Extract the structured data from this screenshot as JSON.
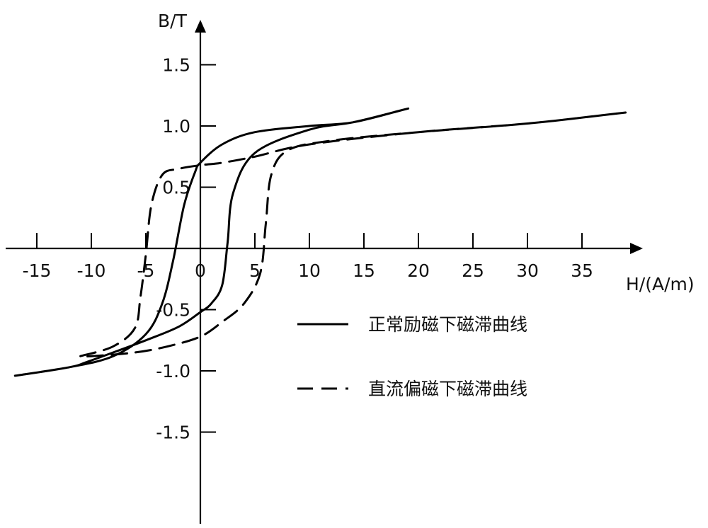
{
  "chart_data": {
    "type": "line",
    "xlabel": "H/(A/m)",
    "ylabel": "B/T",
    "xlim": [
      -17,
      39
    ],
    "ylim": [
      -2.2,
      1.85
    ],
    "x_ticks": [
      -15,
      -10,
      -5,
      0,
      5,
      10,
      15,
      20,
      25,
      30,
      35
    ],
    "x_tick_labels": [
      "-15",
      "-10",
      "-5",
      "0",
      "5",
      "10",
      "15",
      "20",
      "25",
      "30",
      "35"
    ],
    "y_ticks": [
      1.5,
      1.0,
      0.5,
      -0.5,
      -1.0,
      -1.5
    ],
    "y_tick_labels": [
      "1.5",
      "1.0",
      "0.5",
      "-0.5",
      "-1.0",
      "-1.5"
    ],
    "legend_position": "right",
    "series": [
      {
        "name": "正常励磁下磁滞曲线",
        "style": "solid",
        "color": "#000000",
        "x": [
          -17,
          -12,
          -8,
          -5,
          -3.5,
          -2.5,
          -1.5,
          -0.5,
          0,
          2,
          5,
          10,
          14,
          18.5,
          18.5,
          14,
          10,
          5,
          3,
          2.5,
          2,
          1,
          0,
          -2,
          -5,
          -8,
          -10.5,
          -12
        ],
        "y": [
          -1.04,
          -0.97,
          -0.88,
          -0.7,
          -0.45,
          -0.1,
          0.35,
          0.62,
          0.7,
          0.85,
          0.95,
          1.0,
          1.03,
          1.13,
          1.13,
          1.03,
          0.97,
          0.78,
          0.45,
          0.05,
          -0.3,
          -0.45,
          -0.52,
          -0.64,
          -0.75,
          -0.85,
          -0.93,
          -0.97
        ]
      },
      {
        "name": "直流偏磁下磁滞曲线",
        "style": "dashed",
        "color": "#000000",
        "x": [
          -11,
          -8,
          -6,
          -5.5,
          -5,
          -4.5,
          -3.5,
          -2,
          0,
          2,
          5,
          10,
          20,
          30,
          38,
          38,
          30,
          20,
          12,
          8,
          6.5,
          6,
          5.5,
          4,
          2,
          0,
          -3,
          -6,
          -10
        ],
        "y": [
          -0.88,
          -0.8,
          -0.65,
          -0.4,
          -0.05,
          0.35,
          0.6,
          0.65,
          0.68,
          0.7,
          0.75,
          0.85,
          0.95,
          1.02,
          1.1,
          1.1,
          1.02,
          0.95,
          0.88,
          0.8,
          0.6,
          0.2,
          -0.2,
          -0.45,
          -0.6,
          -0.72,
          -0.8,
          -0.85,
          -0.88
        ]
      }
    ]
  }
}
